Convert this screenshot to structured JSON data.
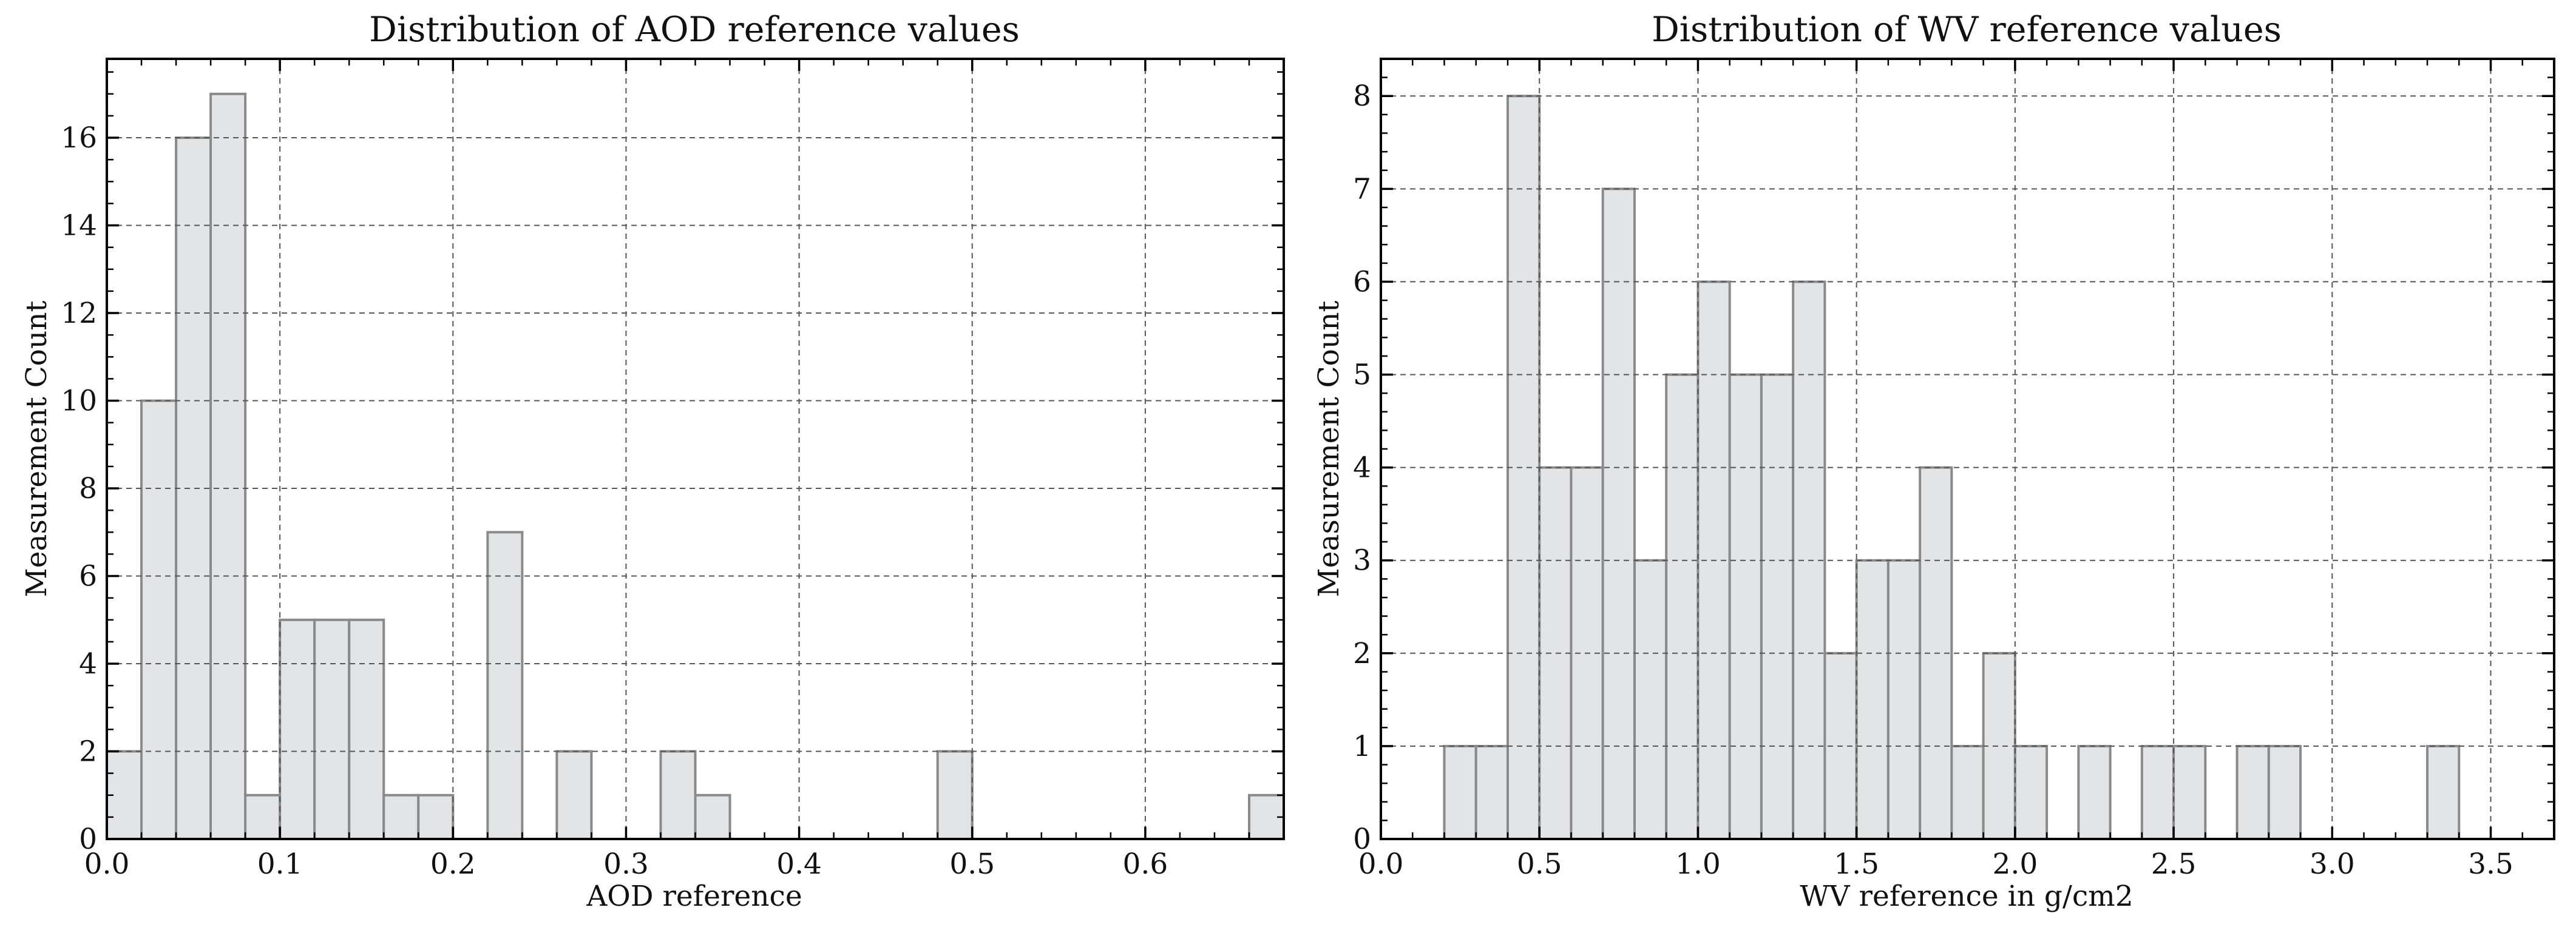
{
  "chart_data": [
    {
      "type": "bar",
      "title": "Distribution of AOD reference values",
      "xlabel": "AOD reference",
      "ylabel": "Measurement Count",
      "xlim": [
        0.0,
        0.68
      ],
      "ylim": [
        0,
        17.8
      ],
      "bin_edges": [
        0.0,
        0.02,
        0.04,
        0.06,
        0.08,
        0.1,
        0.12,
        0.14,
        0.16,
        0.18,
        0.2,
        0.22,
        0.24,
        0.26,
        0.28,
        0.3,
        0.32,
        0.34,
        0.36,
        0.48,
        0.5,
        0.66,
        0.68
      ],
      "bins": [
        {
          "x0": 0.0,
          "x1": 0.02,
          "count": 2
        },
        {
          "x0": 0.02,
          "x1": 0.04,
          "count": 10
        },
        {
          "x0": 0.04,
          "x1": 0.06,
          "count": 16
        },
        {
          "x0": 0.06,
          "x1": 0.08,
          "count": 17
        },
        {
          "x0": 0.08,
          "x1": 0.1,
          "count": 1
        },
        {
          "x0": 0.1,
          "x1": 0.12,
          "count": 5
        },
        {
          "x0": 0.12,
          "x1": 0.14,
          "count": 5
        },
        {
          "x0": 0.14,
          "x1": 0.16,
          "count": 5
        },
        {
          "x0": 0.16,
          "x1": 0.18,
          "count": 1
        },
        {
          "x0": 0.18,
          "x1": 0.2,
          "count": 1
        },
        {
          "x0": 0.22,
          "x1": 0.24,
          "count": 7
        },
        {
          "x0": 0.26,
          "x1": 0.28,
          "count": 2
        },
        {
          "x0": 0.32,
          "x1": 0.34,
          "count": 2
        },
        {
          "x0": 0.34,
          "x1": 0.36,
          "count": 1
        },
        {
          "x0": 0.48,
          "x1": 0.5,
          "count": 2
        },
        {
          "x0": 0.66,
          "x1": 0.68,
          "count": 1
        }
      ],
      "x_ticks": [
        0.0,
        0.1,
        0.2,
        0.3,
        0.4,
        0.5,
        0.6
      ],
      "x_tick_labels": [
        "0.0",
        "0.1",
        "0.2",
        "0.3",
        "0.4",
        "0.5",
        "0.6"
      ],
      "x_minor_step": 0.02,
      "y_ticks": [
        0,
        2,
        4,
        6,
        8,
        10,
        12,
        14,
        16
      ],
      "y_tick_labels": [
        "0",
        "2",
        "4",
        "6",
        "8",
        "10",
        "12",
        "14",
        "16"
      ],
      "y_minor_step": 0.5,
      "grid": true,
      "legend": "none"
    },
    {
      "type": "bar",
      "title": "Distribution of WV reference values",
      "xlabel": "WV reference in g/cm2",
      "ylabel": "Measurement Count",
      "xlim": [
        0.0,
        3.7
      ],
      "ylim": [
        0,
        8.4
      ],
      "bins": [
        {
          "x0": 0.2,
          "x1": 0.3,
          "count": 1
        },
        {
          "x0": 0.3,
          "x1": 0.4,
          "count": 1
        },
        {
          "x0": 0.4,
          "x1": 0.5,
          "count": 8
        },
        {
          "x0": 0.5,
          "x1": 0.6,
          "count": 4
        },
        {
          "x0": 0.6,
          "x1": 0.7,
          "count": 4
        },
        {
          "x0": 0.7,
          "x1": 0.8,
          "count": 7
        },
        {
          "x0": 0.8,
          "x1": 0.9,
          "count": 3
        },
        {
          "x0": 0.9,
          "x1": 1.0,
          "count": 5
        },
        {
          "x0": 1.0,
          "x1": 1.1,
          "count": 6
        },
        {
          "x0": 1.1,
          "x1": 1.2,
          "count": 5
        },
        {
          "x0": 1.2,
          "x1": 1.3,
          "count": 5
        },
        {
          "x0": 1.3,
          "x1": 1.4,
          "count": 6
        },
        {
          "x0": 1.4,
          "x1": 1.5,
          "count": 2
        },
        {
          "x0": 1.5,
          "x1": 1.6,
          "count": 3
        },
        {
          "x0": 1.6,
          "x1": 1.7,
          "count": 3
        },
        {
          "x0": 1.7,
          "x1": 1.8,
          "count": 4
        },
        {
          "x0": 1.8,
          "x1": 1.9,
          "count": 1
        },
        {
          "x0": 1.9,
          "x1": 2.0,
          "count": 2
        },
        {
          "x0": 2.0,
          "x1": 2.1,
          "count": 1
        },
        {
          "x0": 2.2,
          "x1": 2.3,
          "count": 1
        },
        {
          "x0": 2.4,
          "x1": 2.5,
          "count": 1
        },
        {
          "x0": 2.5,
          "x1": 2.6,
          "count": 1
        },
        {
          "x0": 2.7,
          "x1": 2.8,
          "count": 1
        },
        {
          "x0": 2.8,
          "x1": 2.9,
          "count": 1
        },
        {
          "x0": 3.3,
          "x1": 3.4,
          "count": 1
        }
      ],
      "x_ticks": [
        0.0,
        0.5,
        1.0,
        1.5,
        2.0,
        2.5,
        3.0,
        3.5
      ],
      "x_tick_labels": [
        "0.0",
        "0.5",
        "1.0",
        "1.5",
        "2.0",
        "2.5",
        "3.0",
        "3.5"
      ],
      "x_minor_step": 0.1,
      "y_ticks": [
        0,
        1,
        2,
        3,
        4,
        5,
        6,
        7,
        8
      ],
      "y_tick_labels": [
        "0",
        "1",
        "2",
        "3",
        "4",
        "5",
        "6",
        "7",
        "8"
      ],
      "y_minor_step": 0.2,
      "grid": true,
      "legend": "none"
    }
  ]
}
